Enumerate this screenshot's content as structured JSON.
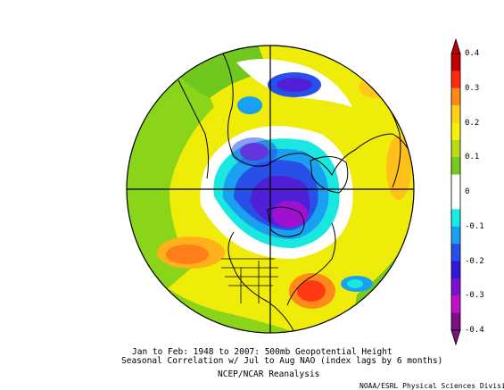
{
  "figure": {
    "caption_line1": "Jan to Feb: 1948 to 2007: 500mb Geopotential Height",
    "caption_line2": "Seasonal Correlation w/ Jul to Aug NAO (index lags by 6 months)",
    "caption_line3": "NCEP/NCAR Reanalysis",
    "credit": "NOAA/ESRL Physical Sciences Division"
  },
  "map": {
    "projection": "polar-stereographic-north",
    "region": "Northern Hemisphere"
  },
  "colorbar": {
    "labels": [
      "0.4",
      "0.3",
      "0.2",
      "0.1",
      "0",
      "-0.1",
      "-0.2",
      "-0.3",
      "-0.4"
    ],
    "colors": [
      "#c00000",
      "#ff2a10",
      "#ff8a1a",
      "#ffd21a",
      "#f4f20a",
      "#b8dc14",
      "#78c820",
      "#ffffff",
      "#ffffff",
      "#18ece4",
      "#1aa0f0",
      "#2850e8",
      "#3018d8",
      "#8010d0",
      "#c010c8",
      "#7a1280"
    ]
  }
}
